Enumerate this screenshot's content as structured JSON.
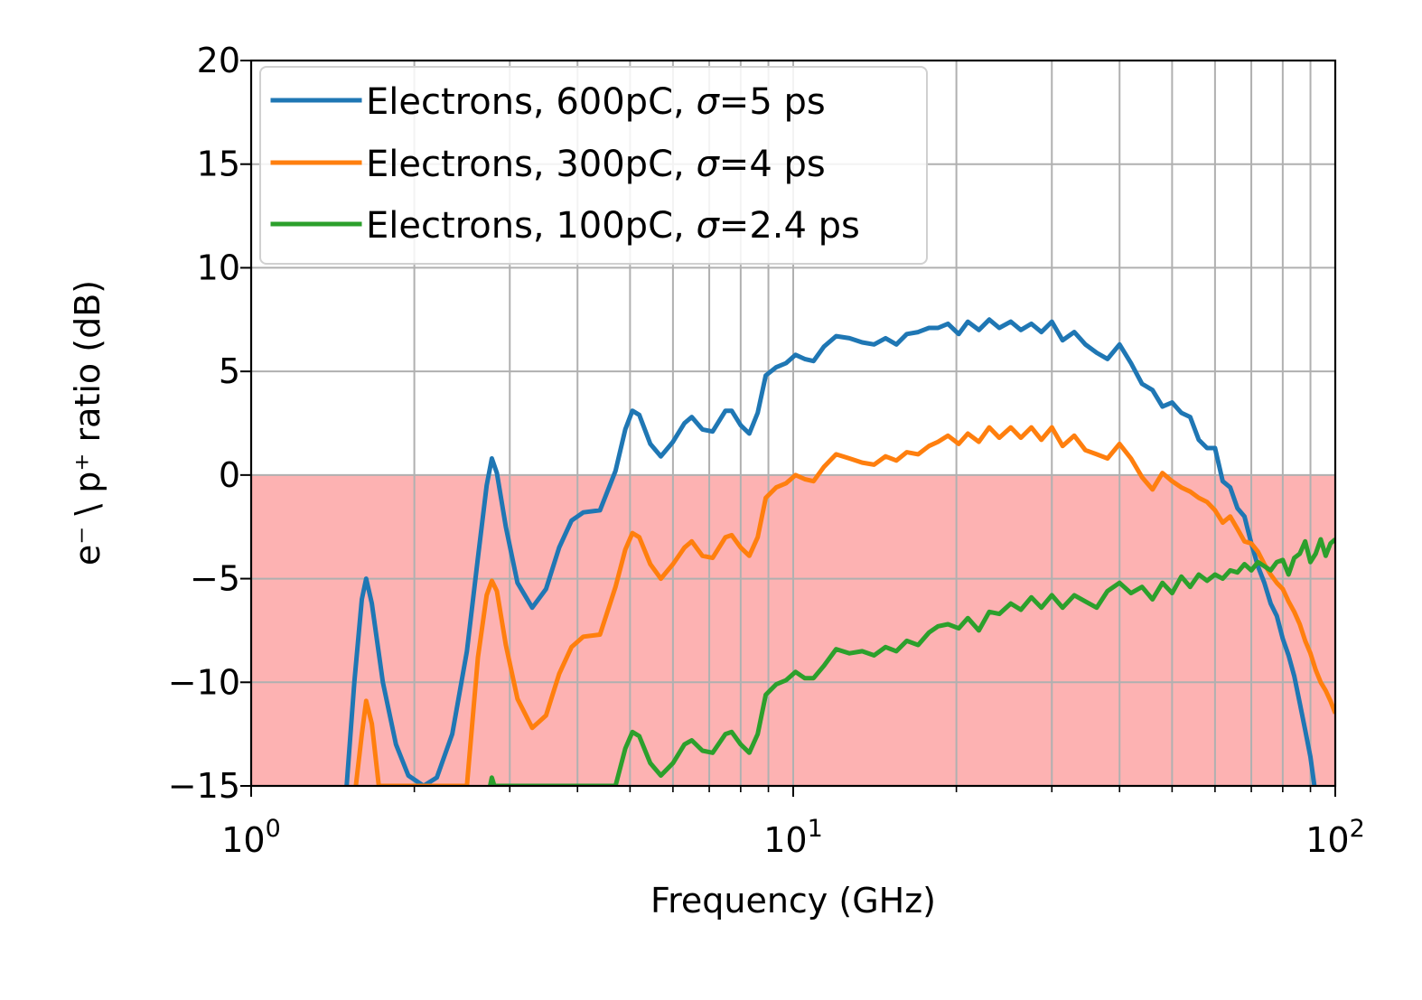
{
  "chart_data": {
    "type": "line",
    "xlabel": "Frequency (GHz)",
    "ylabel": "e⁻ \\ p⁺ ratio (dB)",
    "xscale": "log",
    "xlim": [
      1,
      100
    ],
    "ylim": [
      -15,
      20
    ],
    "xticks": [
      {
        "value": 1,
        "base": "10",
        "exp": "0"
      },
      {
        "value": 10,
        "base": "10",
        "exp": "1"
      },
      {
        "value": 100,
        "base": "10",
        "exp": "2"
      }
    ],
    "yticks": [
      {
        "value": -15,
        "label": "−15"
      },
      {
        "value": -10,
        "label": "−10"
      },
      {
        "value": -5,
        "label": "−5"
      },
      {
        "value": 0,
        "label": "0"
      },
      {
        "value": 5,
        "label": "5"
      },
      {
        "value": 10,
        "label": "10"
      },
      {
        "value": 15,
        "label": "15"
      },
      {
        "value": 20,
        "label": "20"
      }
    ],
    "grid": true,
    "grid_minor": true,
    "legend_position": "top-left",
    "shaded_region": {
      "y_from": -15,
      "y_to": 0,
      "color": "#fdb2b2"
    },
    "series": [
      {
        "name": "Electrons, 600pC, σ=5 ps",
        "legend_prefix": "Electrons, 600pC, ",
        "legend_sigma": "σ",
        "legend_suffix": "=5 ps",
        "color": "#1f77b4",
        "points": [
          [
            1.5,
            -15
          ],
          [
            1.55,
            -10
          ],
          [
            1.6,
            -6
          ],
          [
            1.63,
            -5.0
          ],
          [
            1.67,
            -6.2
          ],
          [
            1.75,
            -10
          ],
          [
            1.85,
            -13
          ],
          [
            1.95,
            -14.5
          ],
          [
            2.08,
            -15
          ],
          [
            2.2,
            -14.6
          ],
          [
            2.35,
            -12.5
          ],
          [
            2.5,
            -8.5
          ],
          [
            2.62,
            -4
          ],
          [
            2.72,
            -0.5
          ],
          [
            2.78,
            0.8
          ],
          [
            2.84,
            0.1
          ],
          [
            2.95,
            -2.5
          ],
          [
            3.1,
            -5.2
          ],
          [
            3.3,
            -6.4
          ],
          [
            3.5,
            -5.5
          ],
          [
            3.7,
            -3.5
          ],
          [
            3.9,
            -2.2
          ],
          [
            4.1,
            -1.8
          ],
          [
            4.4,
            -1.7
          ],
          [
            4.7,
            0.2
          ],
          [
            4.9,
            2.2
          ],
          [
            5.05,
            3.1
          ],
          [
            5.2,
            2.9
          ],
          [
            5.45,
            1.5
          ],
          [
            5.7,
            0.9
          ],
          [
            6.0,
            1.6
          ],
          [
            6.3,
            2.5
          ],
          [
            6.5,
            2.8
          ],
          [
            6.8,
            2.2
          ],
          [
            7.1,
            2.1
          ],
          [
            7.5,
            3.1
          ],
          [
            7.7,
            3.1
          ],
          [
            8.0,
            2.4
          ],
          [
            8.3,
            2.0
          ],
          [
            8.6,
            3.0
          ],
          [
            8.9,
            4.8
          ],
          [
            9.3,
            5.2
          ],
          [
            9.7,
            5.4
          ],
          [
            10.1,
            5.8
          ],
          [
            10.5,
            5.6
          ],
          [
            10.9,
            5.5
          ],
          [
            11.4,
            6.2
          ],
          [
            12.0,
            6.7
          ],
          [
            12.7,
            6.6
          ],
          [
            13.4,
            6.4
          ],
          [
            14.1,
            6.3
          ],
          [
            14.8,
            6.6
          ],
          [
            15.5,
            6.3
          ],
          [
            16.2,
            6.8
          ],
          [
            17.0,
            6.9
          ],
          [
            17.8,
            7.1
          ],
          [
            18.5,
            7.1
          ],
          [
            19.3,
            7.3
          ],
          [
            20.2,
            6.8
          ],
          [
            21.0,
            7.4
          ],
          [
            22.0,
            7.0
          ],
          [
            23.0,
            7.5
          ],
          [
            24.0,
            7.1
          ],
          [
            25.2,
            7.4
          ],
          [
            26.3,
            7.0
          ],
          [
            27.5,
            7.3
          ],
          [
            28.7,
            6.9
          ],
          [
            30.0,
            7.4
          ],
          [
            31.4,
            6.5
          ],
          [
            33.0,
            6.9
          ],
          [
            34.6,
            6.3
          ],
          [
            36.3,
            5.9
          ],
          [
            38.0,
            5.6
          ],
          [
            40.0,
            6.3
          ],
          [
            42.0,
            5.4
          ],
          [
            44.0,
            4.4
          ],
          [
            46.0,
            4.1
          ],
          [
            48.0,
            3.3
          ],
          [
            50.0,
            3.5
          ],
          [
            52.0,
            3.0
          ],
          [
            54.0,
            2.8
          ],
          [
            56.0,
            1.7
          ],
          [
            58.0,
            1.3
          ],
          [
            60.0,
            1.3
          ],
          [
            62.0,
            -0.3
          ],
          [
            64.0,
            -0.6
          ],
          [
            66.0,
            -1.6
          ],
          [
            68.0,
            -2.0
          ],
          [
            70.0,
            -3.3
          ],
          [
            72.0,
            -4.4
          ],
          [
            74.0,
            -5.2
          ],
          [
            76.0,
            -6.2
          ],
          [
            78.0,
            -6.8
          ],
          [
            80.0,
            -7.9
          ],
          [
            82.0,
            -8.7
          ],
          [
            84.0,
            -9.7
          ],
          [
            86.0,
            -11.0
          ],
          [
            88.0,
            -12.3
          ],
          [
            90.0,
            -13.6
          ],
          [
            91.5,
            -15.0
          ]
        ]
      },
      {
        "name": "Electrons, 300pC, σ=4 ps",
        "legend_prefix": "Electrons, 300pC, ",
        "legend_sigma": "σ",
        "legend_suffix": "=4 ps",
        "color": "#ff7f0e",
        "points": [
          [
            1.56,
            -15
          ],
          [
            1.6,
            -12.5
          ],
          [
            1.63,
            -10.9
          ],
          [
            1.67,
            -12
          ],
          [
            1.72,
            -15
          ],
          [
            2.5,
            -15
          ],
          [
            2.62,
            -8.8
          ],
          [
            2.72,
            -5.8
          ],
          [
            2.78,
            -5.1
          ],
          [
            2.84,
            -5.6
          ],
          [
            2.95,
            -8.2
          ],
          [
            3.1,
            -10.8
          ],
          [
            3.3,
            -12.2
          ],
          [
            3.5,
            -11.6
          ],
          [
            3.7,
            -9.6
          ],
          [
            3.9,
            -8.3
          ],
          [
            4.1,
            -7.8
          ],
          [
            4.4,
            -7.7
          ],
          [
            4.7,
            -5.4
          ],
          [
            4.9,
            -3.6
          ],
          [
            5.05,
            -2.8
          ],
          [
            5.2,
            -3.0
          ],
          [
            5.45,
            -4.3
          ],
          [
            5.7,
            -5.0
          ],
          [
            6.0,
            -4.3
          ],
          [
            6.3,
            -3.5
          ],
          [
            6.5,
            -3.2
          ],
          [
            6.8,
            -3.9
          ],
          [
            7.1,
            -4.0
          ],
          [
            7.5,
            -3.0
          ],
          [
            7.7,
            -2.9
          ],
          [
            8.0,
            -3.5
          ],
          [
            8.3,
            -3.9
          ],
          [
            8.6,
            -3.0
          ],
          [
            8.9,
            -1.1
          ],
          [
            9.3,
            -0.6
          ],
          [
            9.7,
            -0.4
          ],
          [
            10.1,
            0.0
          ],
          [
            10.5,
            -0.2
          ],
          [
            10.9,
            -0.3
          ],
          [
            11.4,
            0.4
          ],
          [
            12.0,
            1.0
          ],
          [
            12.7,
            0.8
          ],
          [
            13.4,
            0.6
          ],
          [
            14.1,
            0.5
          ],
          [
            14.8,
            0.9
          ],
          [
            15.5,
            0.7
          ],
          [
            16.2,
            1.1
          ],
          [
            17.0,
            1.0
          ],
          [
            17.8,
            1.4
          ],
          [
            18.5,
            1.6
          ],
          [
            19.3,
            1.9
          ],
          [
            20.2,
            1.5
          ],
          [
            21.0,
            2.0
          ],
          [
            22.0,
            1.6
          ],
          [
            23.0,
            2.3
          ],
          [
            24.0,
            1.8
          ],
          [
            25.2,
            2.3
          ],
          [
            26.3,
            1.8
          ],
          [
            27.5,
            2.3
          ],
          [
            28.7,
            1.7
          ],
          [
            30.0,
            2.3
          ],
          [
            31.4,
            1.4
          ],
          [
            33.0,
            1.9
          ],
          [
            34.6,
            1.2
          ],
          [
            36.3,
            1.0
          ],
          [
            38.0,
            0.8
          ],
          [
            40.0,
            1.5
          ],
          [
            42.0,
            0.8
          ],
          [
            44.0,
            -0.1
          ],
          [
            46.0,
            -0.7
          ],
          [
            48.0,
            0.1
          ],
          [
            50.0,
            -0.3
          ],
          [
            52.0,
            -0.6
          ],
          [
            54.0,
            -0.8
          ],
          [
            56.0,
            -1.1
          ],
          [
            58.0,
            -1.3
          ],
          [
            60.0,
            -1.7
          ],
          [
            62.0,
            -2.3
          ],
          [
            64.0,
            -2.0
          ],
          [
            66.0,
            -2.6
          ],
          [
            68.0,
            -3.2
          ],
          [
            70.0,
            -3.3
          ],
          [
            72.0,
            -3.7
          ],
          [
            74.0,
            -4.3
          ],
          [
            76.0,
            -4.8
          ],
          [
            78.0,
            -5.2
          ],
          [
            80.0,
            -5.5
          ],
          [
            82.0,
            -6.1
          ],
          [
            84.0,
            -6.6
          ],
          [
            86.0,
            -7.2
          ],
          [
            88.0,
            -8.0
          ],
          [
            90.0,
            -8.6
          ],
          [
            92.0,
            -9.4
          ],
          [
            94.0,
            -10.0
          ],
          [
            96.0,
            -10.4
          ],
          [
            98.0,
            -10.9
          ],
          [
            100.0,
            -11.5
          ]
        ]
      },
      {
        "name": "Electrons, 100pC, σ=2.4 ps",
        "legend_prefix": "Electrons, 100pC, ",
        "legend_sigma": "σ",
        "legend_suffix": "=2.4 ps",
        "color": "#2ca02c",
        "points": [
          [
            2.76,
            -15
          ],
          [
            2.78,
            -14.6
          ],
          [
            2.81,
            -15
          ],
          [
            4.7,
            -15
          ],
          [
            4.9,
            -13.2
          ],
          [
            5.05,
            -12.4
          ],
          [
            5.2,
            -12.6
          ],
          [
            5.45,
            -13.9
          ],
          [
            5.7,
            -14.5
          ],
          [
            6.0,
            -13.9
          ],
          [
            6.3,
            -13.0
          ],
          [
            6.5,
            -12.8
          ],
          [
            6.8,
            -13.3
          ],
          [
            7.1,
            -13.4
          ],
          [
            7.5,
            -12.5
          ],
          [
            7.7,
            -12.4
          ],
          [
            8.0,
            -13.0
          ],
          [
            8.3,
            -13.4
          ],
          [
            8.6,
            -12.5
          ],
          [
            8.9,
            -10.6
          ],
          [
            9.3,
            -10.1
          ],
          [
            9.7,
            -9.9
          ],
          [
            10.1,
            -9.5
          ],
          [
            10.5,
            -9.8
          ],
          [
            10.9,
            -9.8
          ],
          [
            11.4,
            -9.2
          ],
          [
            12.0,
            -8.4
          ],
          [
            12.7,
            -8.6
          ],
          [
            13.4,
            -8.5
          ],
          [
            14.1,
            -8.7
          ],
          [
            14.8,
            -8.3
          ],
          [
            15.5,
            -8.5
          ],
          [
            16.2,
            -8.0
          ],
          [
            17.0,
            -8.2
          ],
          [
            17.8,
            -7.6
          ],
          [
            18.5,
            -7.3
          ],
          [
            19.3,
            -7.2
          ],
          [
            20.2,
            -7.4
          ],
          [
            21.0,
            -6.9
          ],
          [
            22.0,
            -7.5
          ],
          [
            23.0,
            -6.6
          ],
          [
            24.0,
            -6.7
          ],
          [
            25.2,
            -6.2
          ],
          [
            26.3,
            -6.5
          ],
          [
            27.5,
            -5.9
          ],
          [
            28.7,
            -6.4
          ],
          [
            30.0,
            -5.8
          ],
          [
            31.4,
            -6.4
          ],
          [
            33.0,
            -5.8
          ],
          [
            34.6,
            -6.1
          ],
          [
            36.3,
            -6.4
          ],
          [
            38.0,
            -5.6
          ],
          [
            40.0,
            -5.2
          ],
          [
            42.0,
            -5.7
          ],
          [
            44.0,
            -5.4
          ],
          [
            46.0,
            -6.0
          ],
          [
            48.0,
            -5.2
          ],
          [
            50.0,
            -5.7
          ],
          [
            52.0,
            -4.9
          ],
          [
            54.0,
            -5.4
          ],
          [
            56.0,
            -4.8
          ],
          [
            58.0,
            -5.1
          ],
          [
            60.0,
            -4.8
          ],
          [
            62.0,
            -5.0
          ],
          [
            64.0,
            -4.6
          ],
          [
            66.0,
            -4.7
          ],
          [
            68.0,
            -4.3
          ],
          [
            70.0,
            -4.6
          ],
          [
            72.0,
            -4.2
          ],
          [
            74.0,
            -4.4
          ],
          [
            76.0,
            -4.6
          ],
          [
            78.0,
            -4.2
          ],
          [
            80.0,
            -4.1
          ],
          [
            82.0,
            -4.8
          ],
          [
            84.0,
            -4.0
          ],
          [
            86.0,
            -3.8
          ],
          [
            88.0,
            -3.2
          ],
          [
            90.0,
            -4.2
          ],
          [
            92.0,
            -3.8
          ],
          [
            94.0,
            -3.1
          ],
          [
            96.0,
            -3.9
          ],
          [
            98.0,
            -3.3
          ],
          [
            100.0,
            -3.1
          ]
        ]
      }
    ]
  }
}
